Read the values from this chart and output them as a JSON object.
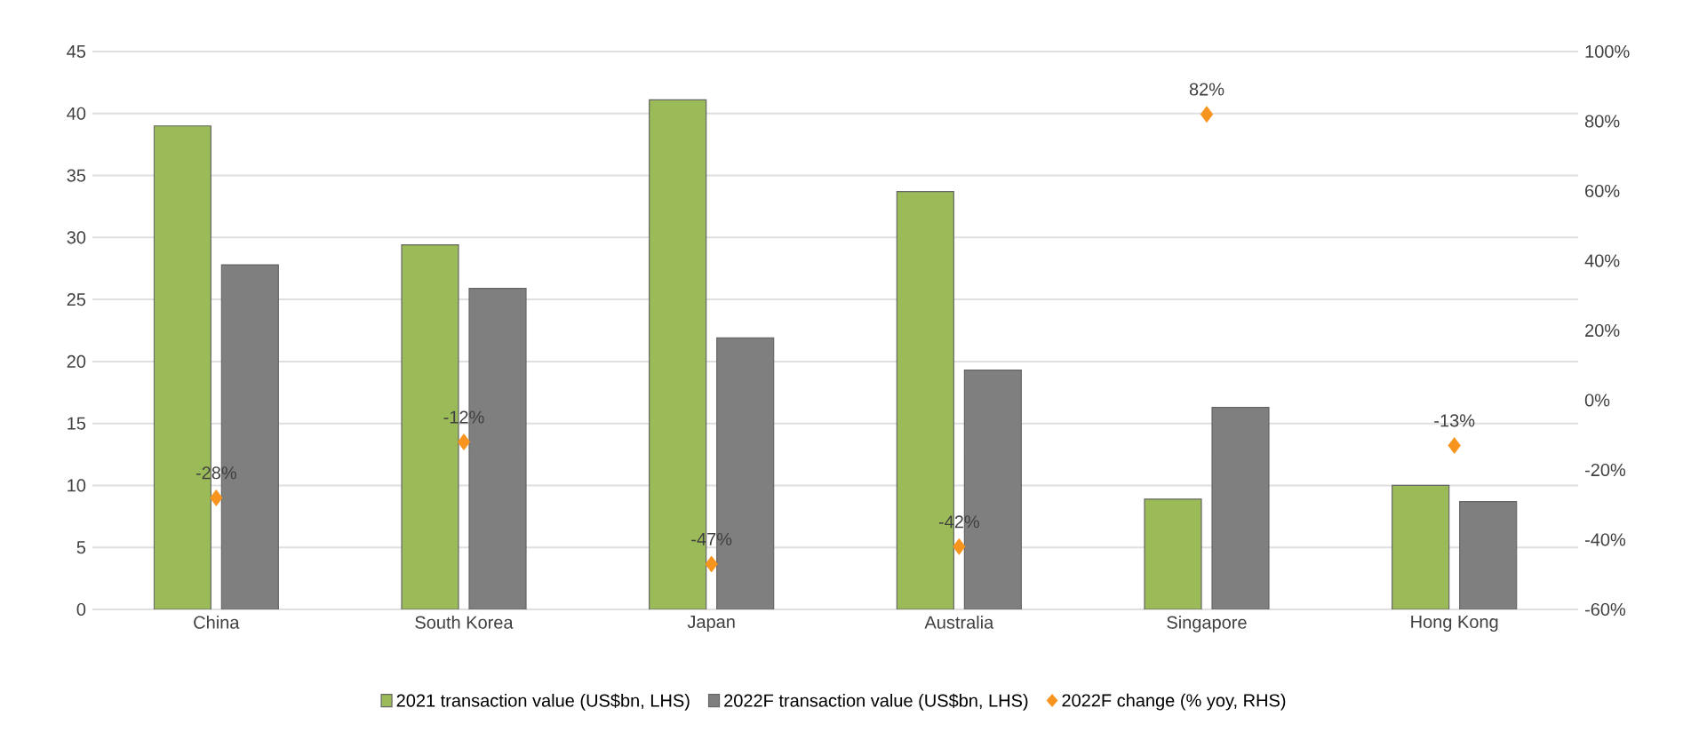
{
  "chart_data": {
    "type": "bar",
    "categories": [
      "China",
      "South Korea",
      "Japan",
      "Australia",
      "Singapore",
      "Hong Kong"
    ],
    "series": [
      {
        "name": "2021 transaction value (US$bn, LHS)",
        "color": "#9bbb59",
        "values": [
          39.0,
          29.4,
          41.1,
          33.7,
          8.9,
          10.0
        ]
      },
      {
        "name": "2022F transaction value (US$bn, LHS)",
        "color": "#7f7f7f",
        "values": [
          27.8,
          25.9,
          21.9,
          19.3,
          16.3,
          8.7
        ]
      },
      {
        "name": "2022F change (% yoy, RHS)",
        "type": "scatter",
        "axis": "y2",
        "marker": "diamond",
        "color": "#f7941d",
        "values": [
          -28,
          -12,
          -47,
          -42,
          82,
          -13
        ],
        "value_labels": [
          "-28%",
          "-12%",
          "-47%",
          "-42%",
          "82%",
          "-13%"
        ]
      }
    ],
    "ylim": [
      0,
      45
    ],
    "yticks": [
      0,
      5,
      10,
      15,
      20,
      25,
      30,
      35,
      40,
      45
    ],
    "y2lim": [
      -60,
      100
    ],
    "y2ticks": [
      {
        "value": -60,
        "label": "-60%"
      },
      {
        "value": -40,
        "label": "-40%"
      },
      {
        "value": -20,
        "label": "-20%"
      },
      {
        "value": 0,
        "label": "0%"
      },
      {
        "value": 20,
        "label": "20%"
      },
      {
        "value": 40,
        "label": "40%"
      },
      {
        "value": 60,
        "label": "60%"
      },
      {
        "value": 80,
        "label": "80%"
      },
      {
        "value": 100,
        "label": "100%"
      }
    ],
    "grid": "y",
    "legend": "bottom"
  }
}
